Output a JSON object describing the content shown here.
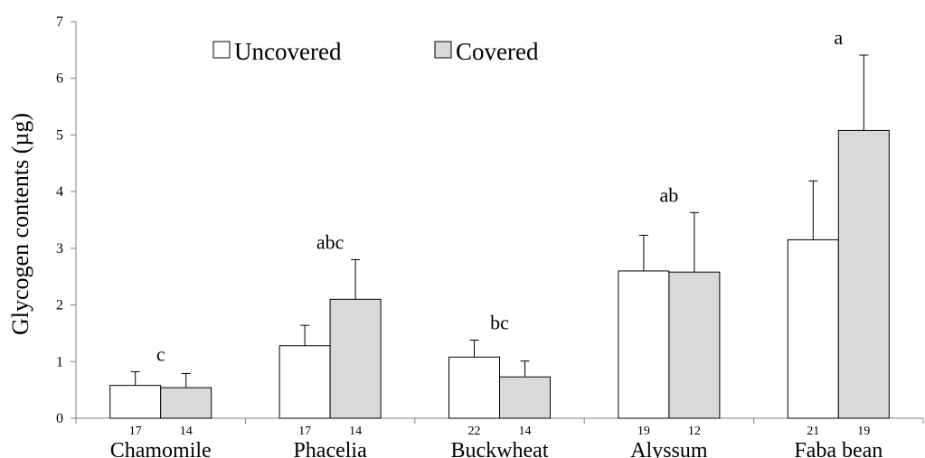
{
  "chart_data": {
    "type": "bar",
    "ylabel": "Glycogen contents (µg)",
    "xlabel": "",
    "ylim": [
      0,
      7
    ],
    "yticks": [
      0,
      1,
      2,
      3,
      4,
      5,
      6,
      7
    ],
    "categories": [
      "Chamomile",
      "Phacelia",
      "Buckwheat",
      "Alyssum",
      "Faba bean"
    ],
    "legend": {
      "placement": "top-left",
      "entries": [
        "Uncovered",
        "Covered"
      ]
    },
    "series": [
      {
        "name": "Uncovered",
        "color": "#ffffff",
        "values": [
          0.58,
          1.28,
          1.08,
          2.6,
          3.15
        ],
        "error": [
          0.24,
          0.36,
          0.3,
          0.63,
          1.04
        ],
        "n": [
          "17",
          "17",
          "22",
          "19",
          "21"
        ]
      },
      {
        "name": "Covered",
        "color": "#d9d9d9",
        "values": [
          0.54,
          2.1,
          0.73,
          2.58,
          5.08
        ],
        "error": [
          0.25,
          0.7,
          0.28,
          1.05,
          1.33
        ],
        "n": [
          "14",
          "14",
          "14",
          "12",
          "19"
        ]
      }
    ],
    "significance": [
      "c",
      "abc",
      "bc",
      "ab",
      "a"
    ],
    "grid": false
  }
}
